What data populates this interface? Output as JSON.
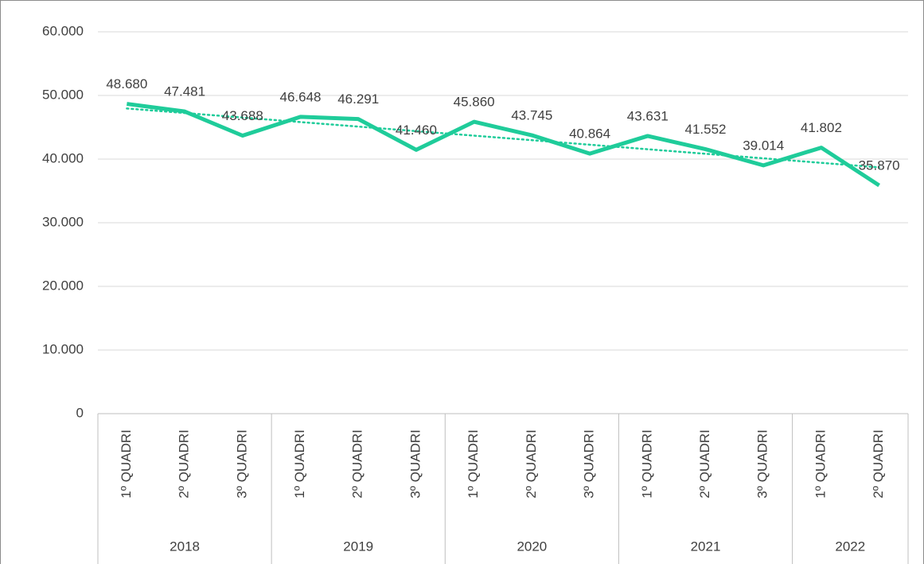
{
  "chart_data": {
    "type": "line",
    "category_groups": [
      {
        "name": "2018",
        "categories": [
          "1º QUADRI",
          "2º QUADRI",
          "3º QUADRI"
        ]
      },
      {
        "name": "2019",
        "categories": [
          "1º QUADRI",
          "2º QUADRI",
          "3º QUADRI"
        ]
      },
      {
        "name": "2020",
        "categories": [
          "1º QUADRI",
          "2º QUADRI",
          "3º QUADRI"
        ]
      },
      {
        "name": "2021",
        "categories": [
          "1º QUADRI",
          "2º QUADRI",
          "3º QUADRI"
        ]
      },
      {
        "name": "2022",
        "categories": [
          "1º QUADRI",
          "2º QUADRI"
        ]
      }
    ],
    "values": [
      48680,
      47481,
      43688,
      46648,
      46291,
      41460,
      45860,
      43745,
      40864,
      43631,
      41552,
      39014,
      41802,
      35870
    ],
    "value_labels": [
      "48.680",
      "47.481",
      "43.688",
      "46.648",
      "46.291",
      "41.460",
      "45.860",
      "43.745",
      "40.864",
      "43.631",
      "41.552",
      "39.014",
      "41.802",
      "35.870"
    ],
    "color": "#1fcc9a",
    "trendline": "linear",
    "ylim": [
      0,
      60000
    ],
    "yticks": [
      0,
      {
        "value": 10000,
        "label": "10.000"
      },
      {
        "value": 20000,
        "label": "20.000"
      },
      {
        "value": 30000,
        "label": "30.000"
      },
      {
        "value": 40000,
        "label": "40.000"
      },
      {
        "value": 50000,
        "label": "50.000"
      },
      {
        "value": 60000,
        "label": "60.000"
      }
    ],
    "grid": true
  }
}
